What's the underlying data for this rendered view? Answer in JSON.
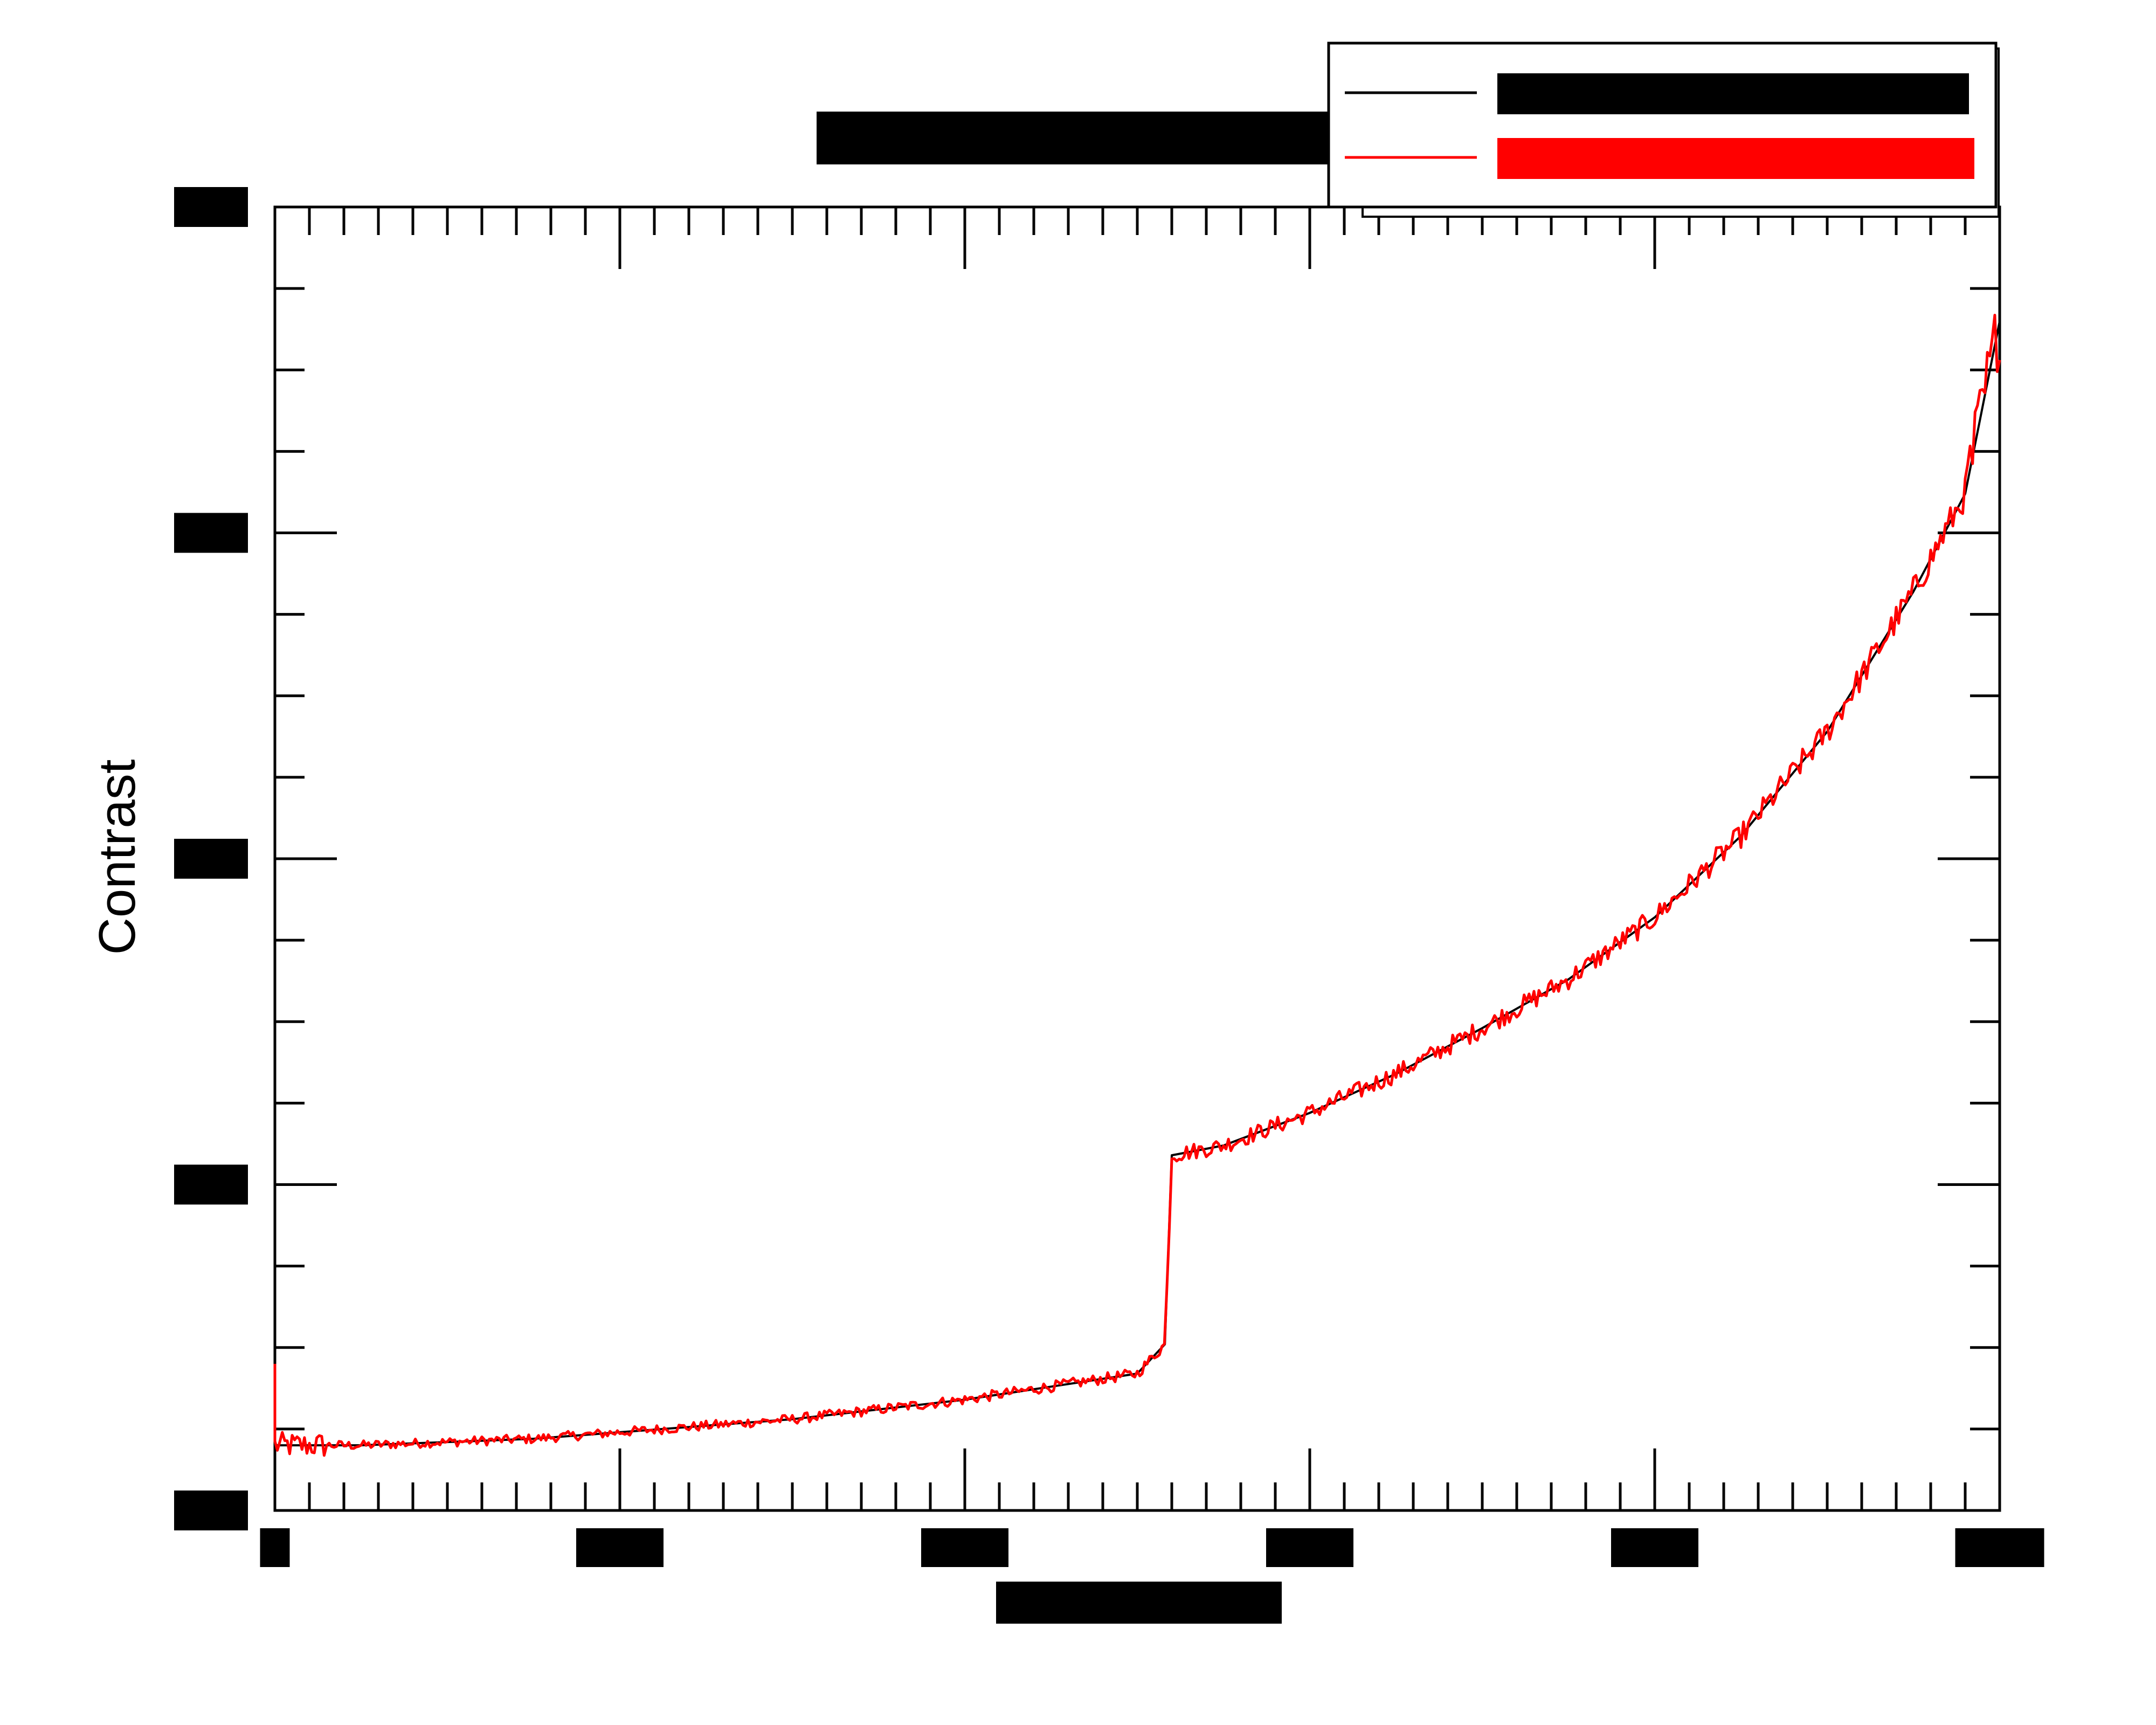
{
  "chart_data": {
    "type": "line",
    "title": "",
    "xlabel": "",
    "ylabel": "Contrast",
    "xlim": [
      0,
      5
    ],
    "ylim": [
      0,
      4
    ],
    "grid": false,
    "legend_position": "top-right",
    "note": "",
    "x_ticks_redacted": [
      0,
      1,
      2,
      3,
      4,
      5
    ],
    "y_ticks_redacted": [
      0,
      1,
      2,
      3,
      4
    ],
    "series": [
      {
        "name": "",
        "color": "#000000",
        "x": [
          0.0,
          0.25,
          0.5,
          0.75,
          1.0,
          1.25,
          1.5,
          1.75,
          2.0,
          2.25,
          2.5,
          2.58,
          2.6,
          2.75,
          3.0,
          3.25,
          3.5,
          3.75,
          4.0,
          4.25,
          4.5,
          4.75,
          4.9,
          5.0
        ],
        "y": [
          0.2,
          0.2,
          0.21,
          0.22,
          0.24,
          0.26,
          0.28,
          0.31,
          0.34,
          0.38,
          0.42,
          0.51,
          1.09,
          1.12,
          1.22,
          1.34,
          1.48,
          1.63,
          1.82,
          2.07,
          2.39,
          2.82,
          3.12,
          3.65
        ]
      },
      {
        "name": "",
        "color": "#ff0000",
        "noise": true,
        "x": [
          0.0,
          0.25,
          0.5,
          0.75,
          1.0,
          1.25,
          1.5,
          1.75,
          2.0,
          2.25,
          2.5,
          2.58,
          2.6,
          2.75,
          3.0,
          3.25,
          3.5,
          3.75,
          4.0,
          4.25,
          4.5,
          4.75,
          4.9,
          5.0
        ],
        "y": [
          0.2,
          0.2,
          0.21,
          0.22,
          0.24,
          0.26,
          0.28,
          0.31,
          0.34,
          0.38,
          0.42,
          0.51,
          1.09,
          1.12,
          1.22,
          1.34,
          1.48,
          1.63,
          1.82,
          2.07,
          2.39,
          2.82,
          3.12,
          3.65
        ]
      }
    ]
  }
}
